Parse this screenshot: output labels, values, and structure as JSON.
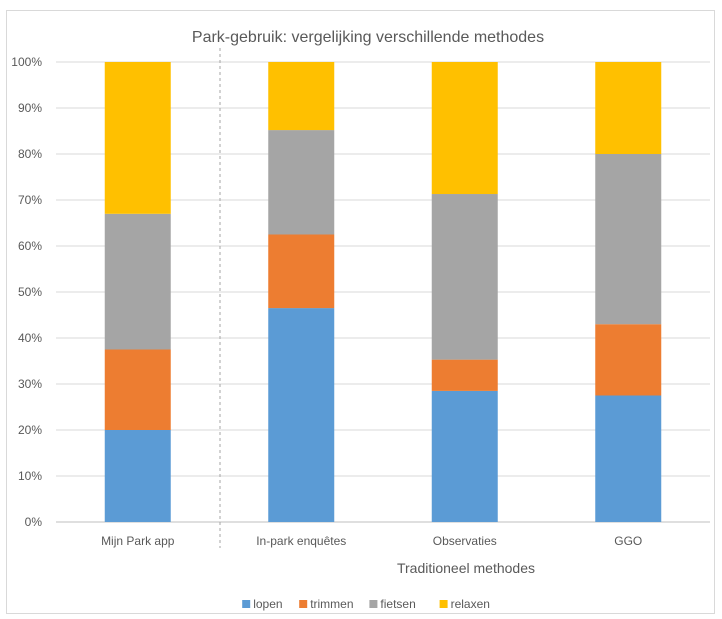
{
  "chart_data": {
    "type": "bar",
    "stacked": true,
    "title": "Park-gebruik: vergelijking verschillende methodes",
    "categories": [
      "Mijn Park app",
      "In-park enquêtes",
      "Observaties",
      "GGO"
    ],
    "group_label": "Traditioneel methodes",
    "xlabel": "",
    "ylabel": "",
    "ylim": [
      0,
      100
    ],
    "yticks": [
      "0%",
      "10%",
      "20%",
      "30%",
      "40%",
      "50%",
      "60%",
      "70%",
      "80%",
      "90%",
      "100%"
    ],
    "series": [
      {
        "name": "lopen",
        "color": "#5b9bd5",
        "values": [
          20,
          46.5,
          28.5,
          27.5
        ]
      },
      {
        "name": "trimmen",
        "color": "#ed7d31",
        "values": [
          17.5,
          16,
          6.8,
          15.5
        ]
      },
      {
        "name": "fietsen",
        "color": "#a5a5a5",
        "values": [
          29.5,
          22.7,
          36,
          37
        ]
      },
      {
        "name": "relaxen",
        "color": "#ffc000",
        "values": [
          33,
          14.8,
          28.7,
          20
        ]
      }
    ],
    "grid": true,
    "legend": "bottom"
  }
}
